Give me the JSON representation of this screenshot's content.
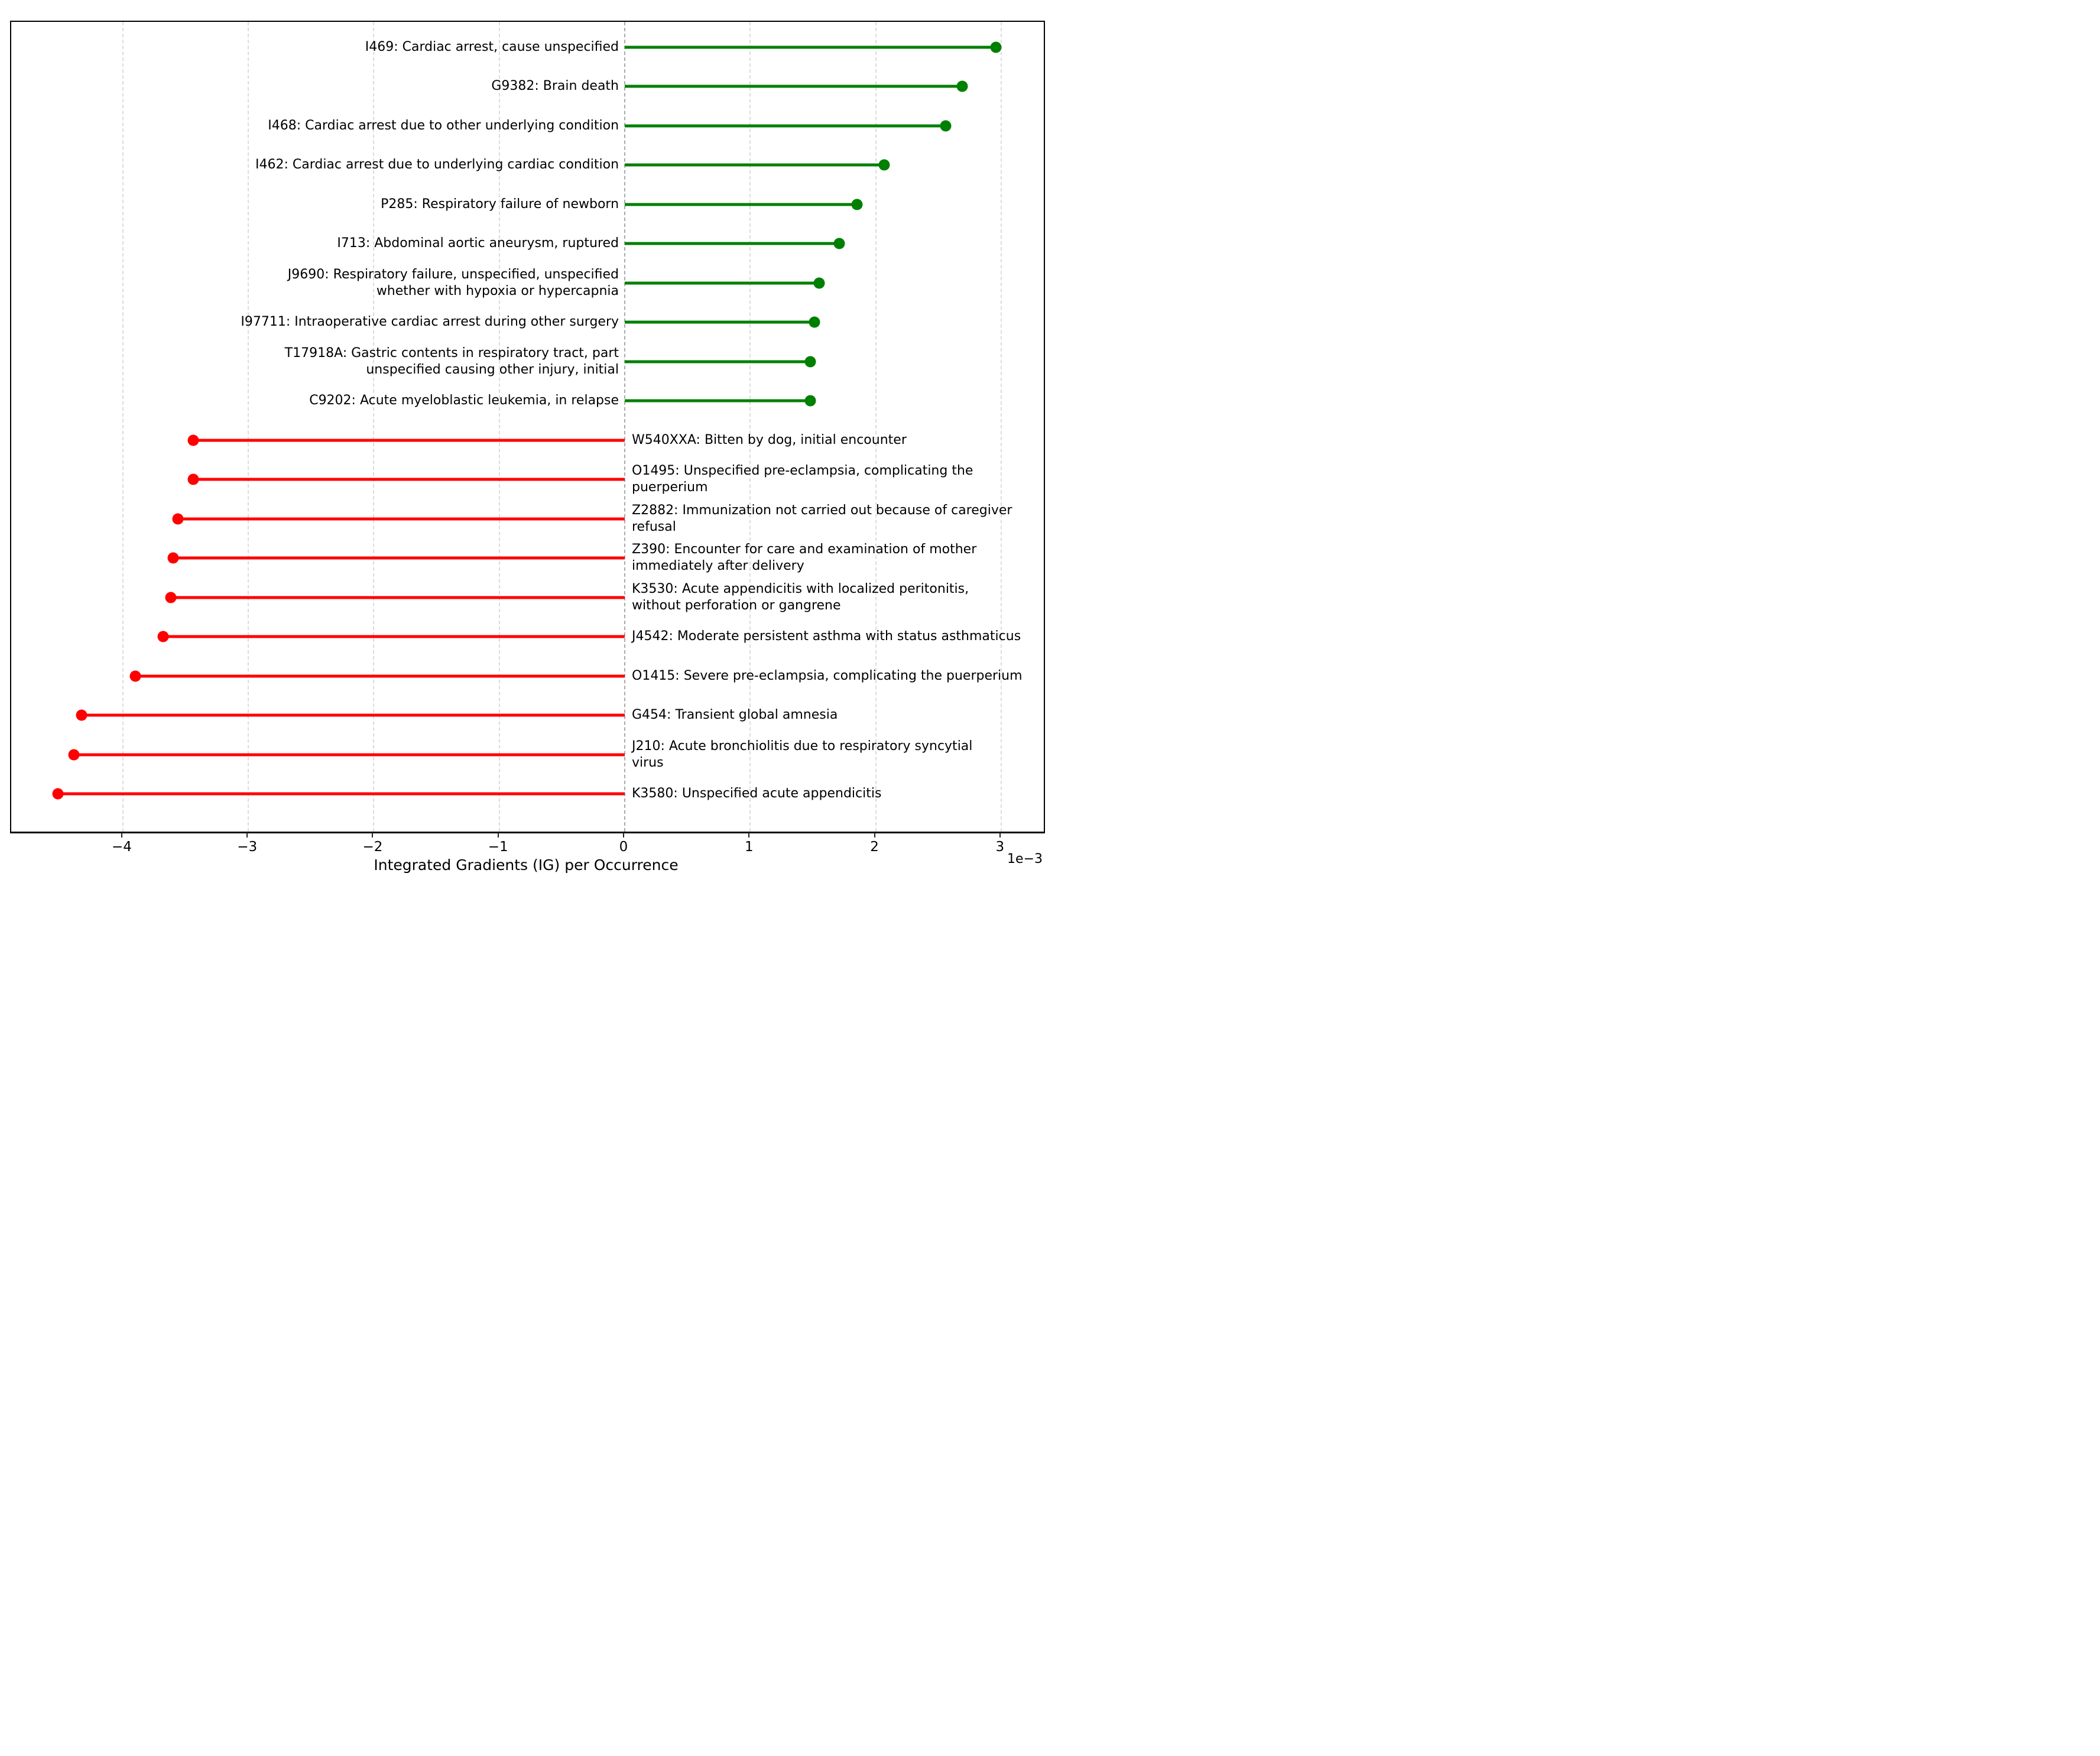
{
  "chart_data": {
    "type": "lollipop",
    "orientation": "horizontal",
    "title": "",
    "xlabel": "Integrated Gradients (IG) per Occurrence",
    "x_scale_label": "1e−3",
    "values_unit": "1e-3",
    "xlim": [
      -4.89,
      3.34
    ],
    "grid": true,
    "legend": "none",
    "xticks": [
      {
        "v": -4,
        "label": "−4"
      },
      {
        "v": -3,
        "label": "−3"
      },
      {
        "v": -2,
        "label": "−2"
      },
      {
        "v": -1,
        "label": "−1"
      },
      {
        "v": 0,
        "label": "0"
      },
      {
        "v": 1,
        "label": "1"
      },
      {
        "v": 2,
        "label": "2"
      },
      {
        "v": 3,
        "label": "3"
      }
    ],
    "colors": {
      "positive": "#008000",
      "negative": "#ff0000",
      "gridline": "#dcdcdc",
      "zero_line": "#aaaaaa",
      "spine": "#000000",
      "text": "#000000"
    },
    "items": [
      {
        "code": "I469",
        "lines": [
          "I469: Cardiac arrest, cause unspecified"
        ],
        "value": 2.96
      },
      {
        "code": "G9382",
        "lines": [
          "G9382: Brain death"
        ],
        "value": 2.69
      },
      {
        "code": "I468",
        "lines": [
          "I468: Cardiac arrest due to other underlying condition"
        ],
        "value": 2.56
      },
      {
        "code": "I462",
        "lines": [
          "I462: Cardiac arrest due to underlying cardiac condition"
        ],
        "value": 2.07
      },
      {
        "code": "P285",
        "lines": [
          "P285: Respiratory failure of newborn"
        ],
        "value": 1.85
      },
      {
        "code": "I713",
        "lines": [
          "I713: Abdominal aortic aneurysm, ruptured"
        ],
        "value": 1.71
      },
      {
        "code": "J9690",
        "lines": [
          "J9690: Respiratory failure, unspecified, unspecified",
          "whether with hypoxia or hypercapnia"
        ],
        "value": 1.55
      },
      {
        "code": "I97711",
        "lines": [
          "I97711: Intraoperative cardiac arrest during other surgery"
        ],
        "value": 1.51
      },
      {
        "code": "T17918A",
        "lines": [
          "T17918A: Gastric contents in respiratory tract, part",
          "unspecified causing other injury, initial"
        ],
        "value": 1.48
      },
      {
        "code": "C9202",
        "lines": [
          "C9202: Acute myeloblastic leukemia, in relapse"
        ],
        "value": 1.48
      },
      {
        "code": "W540XXA",
        "lines": [
          "W540XXA: Bitten by dog, initial encounter"
        ],
        "value": -3.44
      },
      {
        "code": "O1495",
        "lines": [
          "O1495: Unspecified pre-eclampsia, complicating the",
          "puerperium"
        ],
        "value": -3.44
      },
      {
        "code": "Z2882",
        "lines": [
          "Z2882: Immunization not carried out because of caregiver",
          "refusal"
        ],
        "value": -3.56
      },
      {
        "code": "Z390",
        "lines": [
          "Z390: Encounter for care and examination of mother",
          "immediately after delivery"
        ],
        "value": -3.6
      },
      {
        "code": "K3530",
        "lines": [
          "K3530: Acute appendicitis with localized peritonitis,",
          "without perforation or gangrene"
        ],
        "value": -3.62
      },
      {
        "code": "J4542",
        "lines": [
          "J4542: Moderate persistent asthma with status asthmaticus"
        ],
        "value": -3.68
      },
      {
        "code": "O1415",
        "lines": [
          "O1415: Severe pre-eclampsia, complicating the puerperium"
        ],
        "value": -3.9
      },
      {
        "code": "G454",
        "lines": [
          "G454: Transient global amnesia"
        ],
        "value": -4.33
      },
      {
        "code": "J210",
        "lines": [
          "J210: Acute bronchiolitis due to respiratory syncytial",
          "virus"
        ],
        "value": -4.39
      },
      {
        "code": "K3580",
        "lines": [
          "K3580: Unspecified acute appendicitis"
        ],
        "value": -4.52
      }
    ]
  }
}
